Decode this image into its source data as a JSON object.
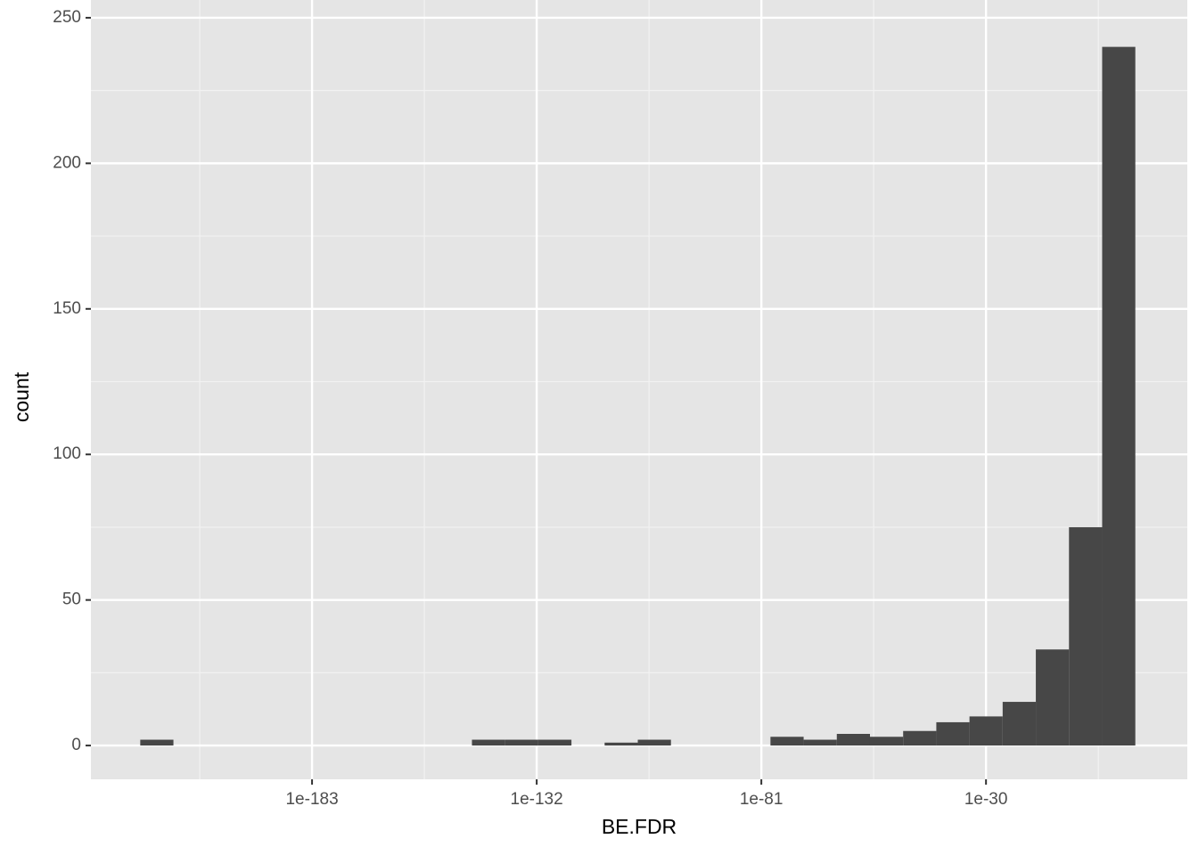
{
  "chart_data": {
    "type": "histogram",
    "xlabel": "BE.FDR",
    "ylabel": "count",
    "xscale": "log",
    "bins": [
      1e-222,
      3.39e-215,
      1.15e-207,
      3.89e-200,
      1.32e-192,
      4.47e-185,
      1.51e-177,
      5.13e-170,
      1.74e-162,
      5.89e-155,
      2e-147,
      6.76e-140,
      2.29e-132,
      7.76e-125,
      2.63e-117,
      8.91e-110,
      3.02e-102,
      1.02e-94,
      3.47e-87,
      1.17e-79,
      3.98e-72,
      1.35e-64,
      4.57e-57,
      1.55e-49,
      5.25e-42,
      1.78e-34,
      6.03e-27,
      2.04e-19,
      6.92e-12,
      0.000234,
      7940
    ],
    "values": [
      2,
      0,
      0,
      0,
      0,
      0,
      0,
      0,
      0,
      0,
      2,
      2,
      2,
      0,
      1,
      2,
      0,
      0,
      0,
      3,
      2,
      4,
      3,
      5,
      8,
      10,
      15,
      33,
      75,
      240
    ],
    "color": "#474747",
    "xlim": [
      6.31e-234,
      5010000000000000.0
    ],
    "xticks": [
      1e-183,
      1e-132,
      1e-81,
      1e-30
    ],
    "ylim": [
      -11.6,
      256.1
    ],
    "yticks": [
      0,
      50,
      100,
      150,
      200,
      250
    ],
    "grid": true
  }
}
